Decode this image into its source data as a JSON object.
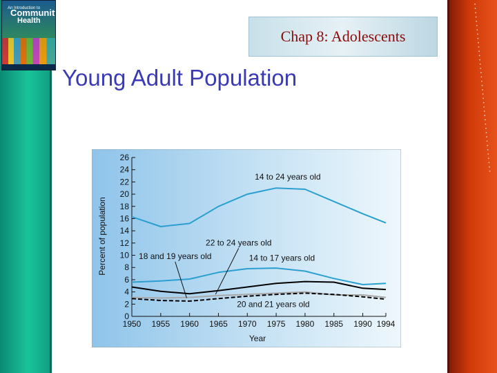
{
  "header": {
    "chapter_title": "Chap 8: Adolescents",
    "slide_title": "Young Adult Population"
  },
  "book": {
    "line1": "An Introduction to",
    "line2": "Community",
    "line3": "Health"
  },
  "colors": {
    "title": "#3a3ab8",
    "chapter": "#8b0a0a",
    "series_14_24": "#2a9fd0",
    "series_14_17": "#2a9fd0",
    "series_18_19": "#000000",
    "series_20_21": "#000000",
    "series_22_24": "#a8a8a8"
  },
  "chart_data": {
    "type": "line",
    "title": "",
    "xlabel": "Year",
    "ylabel": "Percent of population",
    "xlim": [
      1950,
      1994
    ],
    "ylim": [
      0,
      26
    ],
    "x_ticks": [
      1950,
      1955,
      1960,
      1965,
      1970,
      1975,
      1980,
      1985,
      1990,
      1994
    ],
    "y_ticks": [
      0,
      2,
      4,
      6,
      8,
      10,
      12,
      14,
      16,
      18,
      20,
      22,
      24,
      26
    ],
    "grid": false,
    "x": [
      1950,
      1955,
      1960,
      1965,
      1970,
      1975,
      1980,
      1985,
      1990,
      1994
    ],
    "series": [
      {
        "name": "14 to 24 years old",
        "style": "solid",
        "values": [
          16.3,
          14.7,
          15.2,
          18.0,
          20.0,
          21.0,
          20.8,
          18.8,
          16.8,
          15.3
        ]
      },
      {
        "name": "14 to 17 years old",
        "style": "solid",
        "values": [
          5.6,
          5.8,
          6.1,
          7.2,
          7.8,
          7.9,
          7.4,
          6.2,
          5.2,
          5.4
        ]
      },
      {
        "name": "18 and 19 years old",
        "style": "solid",
        "values": [
          4.8,
          4.1,
          3.7,
          4.2,
          4.8,
          5.4,
          5.7,
          5.6,
          4.6,
          4.4
        ]
      },
      {
        "name": "22 to 24 years old",
        "style": "solid",
        "values": [
          3.1,
          3.0,
          3.1,
          3.4,
          3.6,
          3.8,
          4.0,
          3.5,
          3.5,
          3.1
        ]
      },
      {
        "name": "20 and 21 years old",
        "style": "dashed",
        "values": [
          2.9,
          2.6,
          2.5,
          2.9,
          3.3,
          3.6,
          3.8,
          3.6,
          3.2,
          2.8
        ]
      }
    ],
    "annotations": [
      {
        "text": "14 to 24 years old",
        "x": 1977,
        "y": 22.4,
        "target": null
      },
      {
        "text": "22 to 24 years old",
        "x": 1968.5,
        "y": 11.6,
        "target": [
          1964.5,
          3.6
        ]
      },
      {
        "text": "18 and 19 years old",
        "x": 1957.5,
        "y": 9.4,
        "target": [
          1959.5,
          3.0
        ]
      },
      {
        "text": "14 to 17 years old",
        "x": 1976,
        "y": 9.1,
        "target": null
      },
      {
        "text": "20 and 21 years old",
        "x": 1974.5,
        "y": 1.5,
        "target": null
      }
    ]
  }
}
